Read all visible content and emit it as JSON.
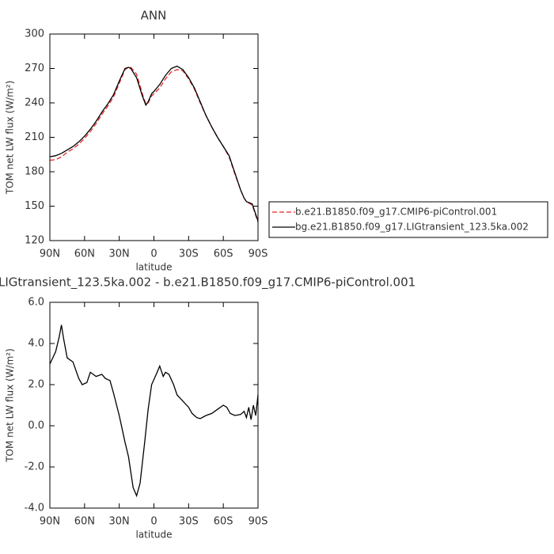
{
  "chart_data": [
    {
      "type": "line",
      "title": "ANN",
      "xlabel": "latitude",
      "ylabel": "TOM net LW flux (W/m²)",
      "x": [
        90,
        85,
        80,
        75,
        70,
        65,
        60,
        55,
        50,
        45,
        40,
        35,
        30,
        25,
        22,
        20,
        15,
        10,
        7,
        5,
        2,
        0,
        -5,
        -10,
        -15,
        -20,
        -25,
        -30,
        -35,
        -40,
        -45,
        -50,
        -55,
        -60,
        -65,
        -70,
        -75,
        -78,
        -80,
        -85,
        -90
      ],
      "series": [
        {
          "name": "b.e21.B1850.f09_g17.CMIP6-piControl.001",
          "color": "#e8262b",
          "dash": "dashed",
          "values": [
            190,
            190.5,
            193,
            197,
            200,
            204,
            209,
            215,
            222,
            230,
            237,
            245,
            257,
            269,
            271,
            271,
            265,
            248,
            239,
            240,
            246,
            248,
            253,
            261,
            267,
            269,
            268,
            261,
            252,
            240,
            229,
            219,
            210,
            202,
            193,
            178,
            164,
            157,
            154,
            151,
            136
          ]
        },
        {
          "name": "bg.e21.B1850.f09_g17.LIGtransient_123.5ka.002",
          "color": "#000000",
          "dash": "solid",
          "values": [
            193,
            194,
            196,
            199,
            202,
            206,
            211,
            217,
            224,
            232,
            239,
            247,
            259,
            270,
            271,
            270,
            262,
            246,
            238,
            241,
            248,
            250,
            256,
            264,
            270,
            272,
            269,
            262,
            253,
            241,
            229,
            219,
            210,
            202,
            194,
            179,
            164,
            157,
            154,
            152,
            137
          ]
        }
      ],
      "xlim": [
        90,
        -90
      ],
      "xticks": [
        {
          "value": 90,
          "label": "90N"
        },
        {
          "value": 60,
          "label": "60N"
        },
        {
          "value": 30,
          "label": "30N"
        },
        0,
        {
          "value": -30,
          "label": "30S"
        },
        {
          "value": -60,
          "label": "60S"
        },
        {
          "value": -90,
          "label": "90S"
        }
      ],
      "ylim": [
        120,
        300
      ],
      "yticks": [
        120,
        150,
        180,
        210,
        240,
        270,
        300
      ],
      "legend": "right"
    },
    {
      "type": "line",
      "title": "LIGtransient_123.5ka.002 - b.e21.B1850.f09_g17.CMIP6-piControl.001",
      "xlabel": "latitude",
      "ylabel": "TOM net LW flux (W/m²)",
      "x": [
        90,
        85,
        82,
        80,
        78,
        75,
        70,
        65,
        62,
        58,
        55,
        50,
        45,
        42,
        38,
        35,
        30,
        25,
        22,
        18,
        15,
        12,
        8,
        5,
        2,
        -2,
        -5,
        -8,
        -10,
        -13,
        -17,
        -20,
        -25,
        -30,
        -33,
        -37,
        -40,
        -45,
        -50,
        -55,
        -60,
        -63,
        -66,
        -70,
        -75,
        -78,
        -80,
        -82,
        -84,
        -86,
        -88,
        -90
      ],
      "series": [
        {
          "color": "#000000",
          "dash": "solid",
          "values": [
            3.0,
            3.6,
            4.3,
            4.9,
            4.2,
            3.3,
            3.1,
            2.3,
            2.0,
            2.1,
            2.6,
            2.4,
            2.5,
            2.3,
            2.2,
            1.6,
            0.5,
            -0.8,
            -1.5,
            -3.0,
            -3.4,
            -2.8,
            -0.8,
            0.8,
            2.0,
            2.5,
            2.9,
            2.4,
            2.6,
            2.5,
            2.0,
            1.5,
            1.2,
            0.9,
            0.6,
            0.4,
            0.35,
            0.5,
            0.6,
            0.8,
            1.0,
            0.9,
            0.6,
            0.5,
            0.55,
            0.7,
            0.4,
            0.9,
            0.3,
            1.0,
            0.5,
            1.5
          ]
        }
      ],
      "xlim": [
        90,
        -90
      ],
      "xticks": [
        {
          "value": 90,
          "label": "90N"
        },
        {
          "value": 60,
          "label": "60N"
        },
        {
          "value": 30,
          "label": "30N"
        },
        0,
        {
          "value": -30,
          "label": "30S"
        },
        {
          "value": -60,
          "label": "60S"
        },
        {
          "value": -90,
          "label": "90S"
        }
      ],
      "ylim": [
        -4,
        6
      ],
      "yticks": [
        {
          "value": -4,
          "label": "-4.0"
        },
        {
          "value": -2,
          "label": "-2.0"
        },
        {
          "value": 0,
          "label": "0.0"
        },
        {
          "value": 2,
          "label": "2.0"
        },
        {
          "value": 4,
          "label": "4.0"
        },
        {
          "value": 6,
          "label": "6.0"
        }
      ]
    }
  ]
}
